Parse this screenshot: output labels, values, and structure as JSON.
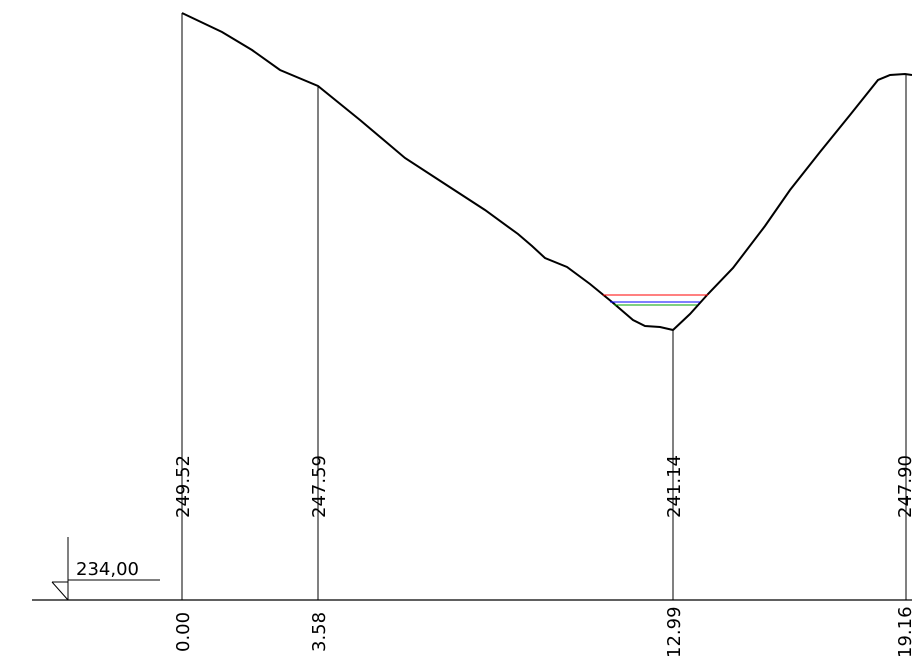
{
  "datum": {
    "label": "234,00"
  },
  "stations": [
    {
      "distance": "0.00",
      "elevation": "249.52"
    },
    {
      "distance": "3.58",
      "elevation": "247.59"
    },
    {
      "distance": "12.99",
      "elevation": "241.14"
    },
    {
      "distance": "19.16",
      "elevation": "247.90"
    }
  ],
  "water_levels": [
    {
      "color": "#ff0000"
    },
    {
      "color": "#0000ff"
    },
    {
      "color": "#00a000"
    }
  ],
  "colors": {
    "terrain": "#000000",
    "background": "#ffffff"
  }
}
